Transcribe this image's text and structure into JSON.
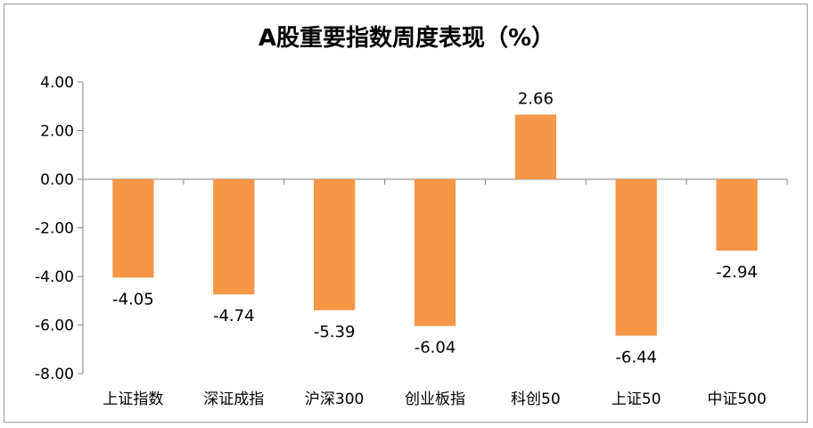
{
  "chart_data": {
    "type": "bar",
    "title": "A股重要指数周度表现（%）",
    "categories": [
      "上证指数",
      "深证成指",
      "沪深300",
      "创业板指",
      "科创50",
      "上证50",
      "中证500"
    ],
    "values": [
      -4.05,
      -4.74,
      -5.39,
      -6.04,
      2.66,
      -6.44,
      -2.94
    ],
    "value_labels": [
      "-4.05",
      "-4.74",
      "-5.39",
      "-6.04",
      "2.66",
      "-6.44",
      "-2.94"
    ],
    "y_ticks": [
      4,
      2,
      0,
      -2,
      -4,
      -6,
      -8
    ],
    "y_tick_labels": [
      "4.00",
      "2.00",
      "0.00",
      "-2.00",
      "-4.00",
      "-6.00",
      "-8.00"
    ],
    "ylim": [
      -8,
      4
    ],
    "xlabel": "",
    "ylabel": "",
    "grid": false,
    "bar_color": "#F79646"
  }
}
